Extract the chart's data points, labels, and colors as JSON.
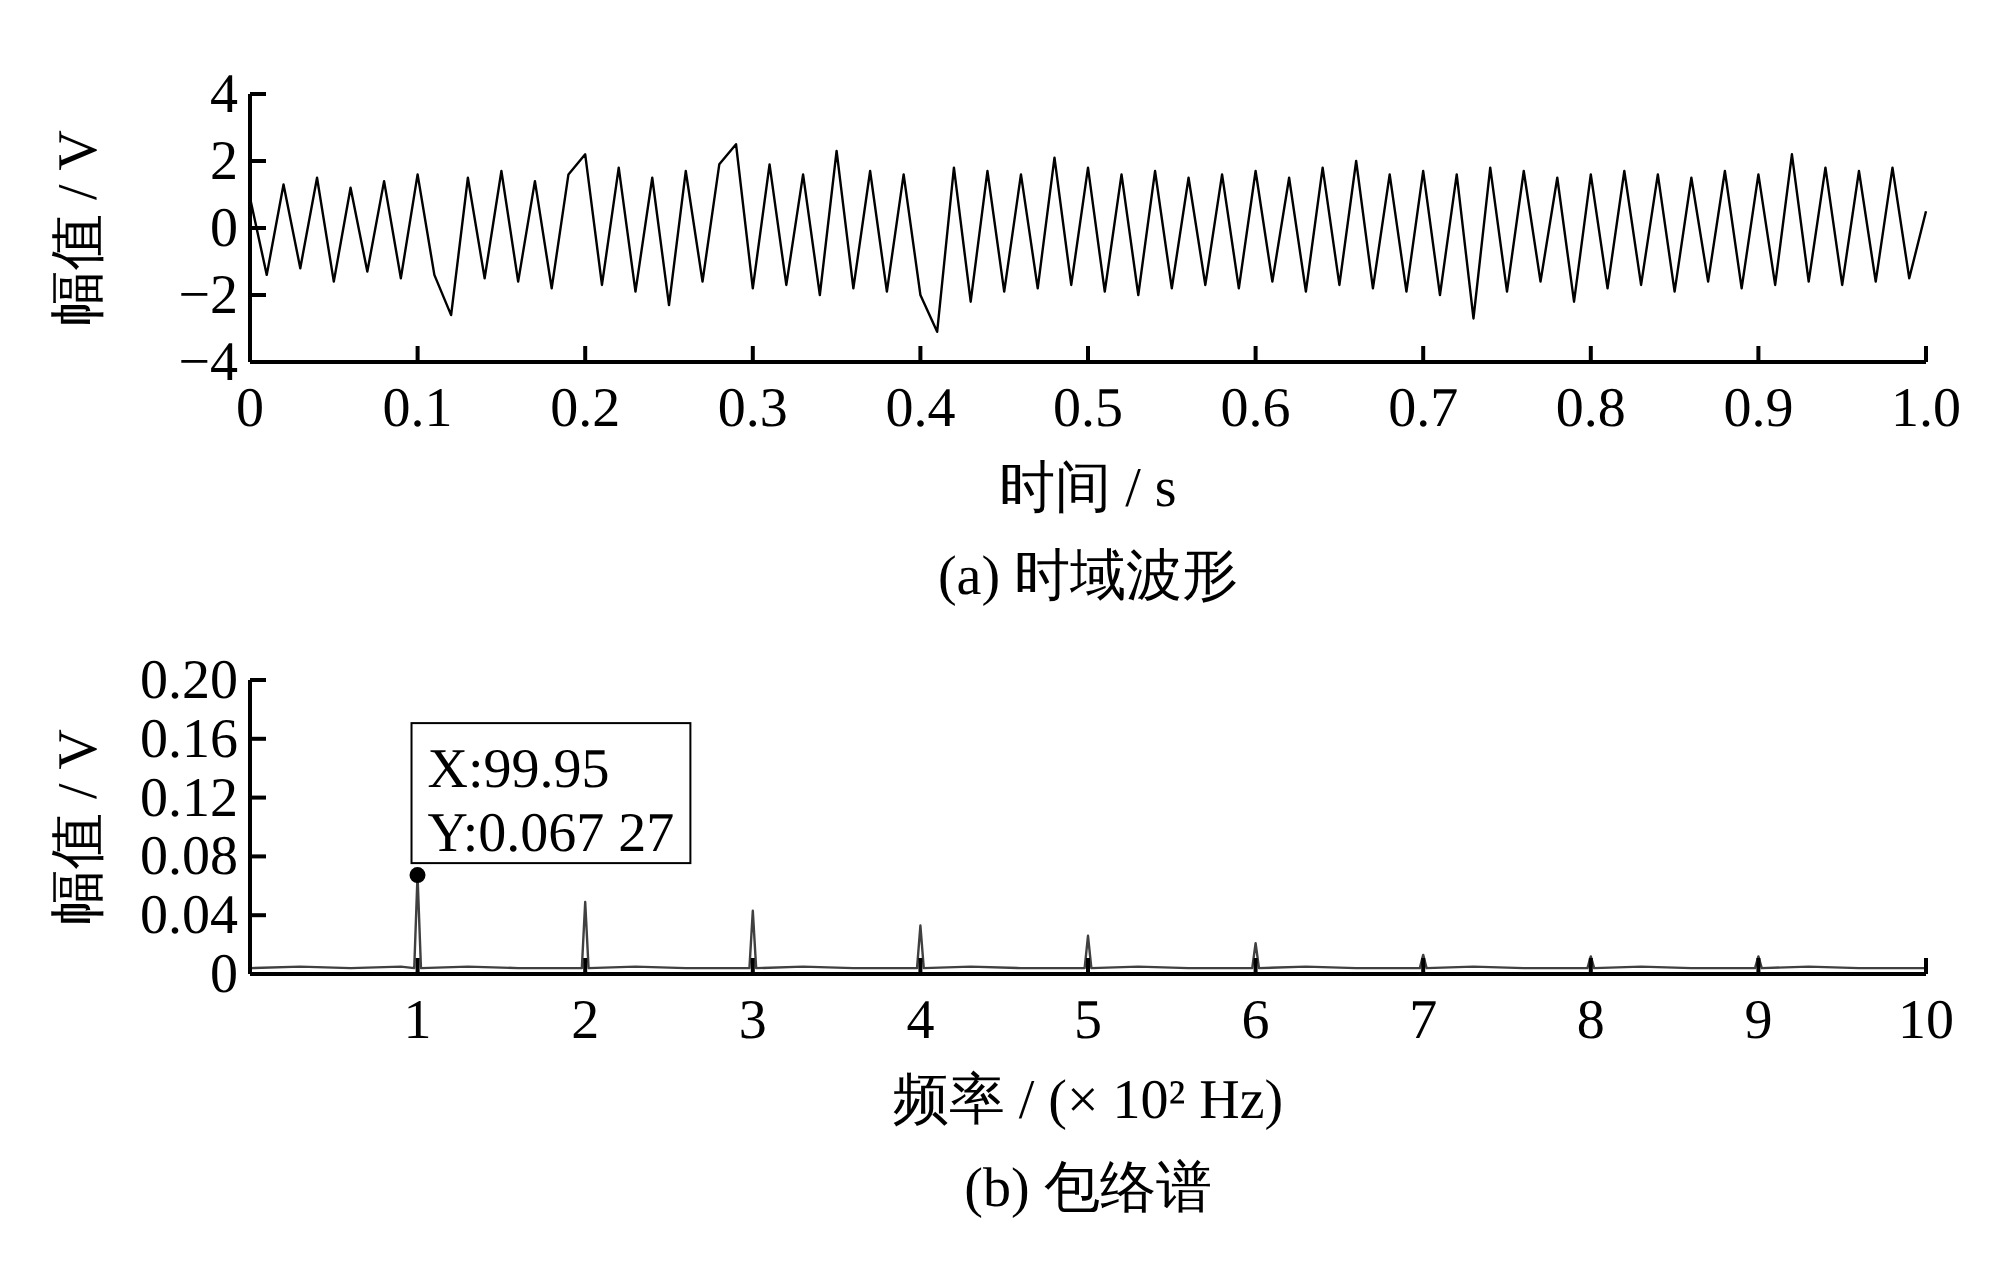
{
  "chart_data": [
    {
      "type": "line",
      "title": "(a) 时域波形",
      "xlabel": "时间 / s",
      "ylabel": "幅值 / V",
      "xlim": [
        0,
        1
      ],
      "ylim": [
        -4,
        4
      ],
      "xticks": [
        0,
        0.1,
        0.2,
        0.3,
        0.4,
        0.5,
        0.6,
        0.7,
        0.8,
        0.9,
        {
          "value": 1,
          "label": "1.0"
        }
      ],
      "yticks": [
        -4,
        -2,
        0,
        2,
        4
      ],
      "series": [
        {
          "color": "#000000",
          "x": [
            0,
            0.01,
            0.02,
            0.03,
            0.04,
            0.05,
            0.06,
            0.07,
            0.08,
            0.09,
            0.1,
            0.11,
            0.12,
            0.13,
            0.14,
            0.15,
            0.16,
            0.17,
            0.18,
            0.19,
            0.2,
            0.21,
            0.22,
            0.23,
            0.24,
            0.25,
            0.26,
            0.27,
            0.28,
            0.29,
            0.3,
            0.31,
            0.32,
            0.33,
            0.34,
            0.35,
            0.36,
            0.37,
            0.38,
            0.39,
            0.4,
            0.41,
            0.42,
            0.43,
            0.44,
            0.45,
            0.46,
            0.47,
            0.48,
            0.49,
            0.5,
            0.51,
            0.52,
            0.53,
            0.54,
            0.55,
            0.56,
            0.57,
            0.58,
            0.59,
            0.6,
            0.61,
            0.62,
            0.63,
            0.64,
            0.65,
            0.66,
            0.67,
            0.68,
            0.69,
            0.7,
            0.71,
            0.72,
            0.73,
            0.74,
            0.75,
            0.76,
            0.77,
            0.78,
            0.79,
            0.8,
            0.81,
            0.82,
            0.83,
            0.84,
            0.85,
            0.86,
            0.87,
            0.88,
            0.89,
            0.9,
            0.91,
            0.92,
            0.93,
            0.94,
            0.95,
            0.96,
            0.97,
            0.98,
            0.99,
            1
          ],
          "values": [
            0.9,
            -1.4,
            1.3,
            -1.2,
            1.5,
            -1.6,
            1.2,
            -1.3,
            1.4,
            -1.5,
            1.6,
            -1.4,
            -2.6,
            1.5,
            -1.5,
            1.7,
            -1.6,
            1.4,
            -1.8,
            1.6,
            2.2,
            -1.7,
            1.8,
            -1.9,
            1.5,
            -2.3,
            1.7,
            -1.6,
            1.9,
            2.5,
            -1.8,
            1.9,
            -1.7,
            1.6,
            -2.0,
            2.3,
            -1.8,
            1.7,
            -1.9,
            1.6,
            -2.0,
            -3.1,
            1.8,
            -2.2,
            1.7,
            -1.9,
            1.6,
            -1.8,
            2.1,
            -1.7,
            1.8,
            -1.9,
            1.6,
            -2.0,
            1.7,
            -1.8,
            1.5,
            -1.7,
            1.6,
            -1.8,
            1.7,
            -1.6,
            1.5,
            -1.9,
            1.8,
            -1.7,
            2.0,
            -1.8,
            1.6,
            -1.9,
            1.7,
            -2.0,
            1.6,
            -2.7,
            1.8,
            -1.9,
            1.7,
            -1.6,
            1.5,
            -2.2,
            1.6,
            -1.8,
            1.7,
            -1.7,
            1.6,
            -1.9,
            1.5,
            -1.6,
            1.7,
            -1.8,
            1.6,
            -1.7,
            2.2,
            -1.6,
            1.8,
            -1.7,
            1.7,
            -1.6,
            1.8,
            -1.5,
            0.5
          ]
        }
      ]
    },
    {
      "type": "line",
      "title": "(b) 包络谱",
      "xlabel": "频率 / (× 10² Hz)",
      "ylabel": "幅值 / V",
      "xlim": [
        0,
        10
      ],
      "ylim": [
        0,
        0.2
      ],
      "xticks": [
        1,
        2,
        3,
        4,
        5,
        6,
        7,
        8,
        9,
        10
      ],
      "yticks": [
        0,
        {
          "value": 0.04,
          "label": "0.04"
        },
        {
          "value": 0.08,
          "label": "0.08"
        },
        {
          "value": 0.12,
          "label": "0.12"
        },
        {
          "value": 0.16,
          "label": "0.16"
        },
        {
          "value": 0.2,
          "label": "0.20"
        }
      ],
      "annotations": [
        {
          "text": "X:99.95\nY:0.067 27",
          "x": 0.9995,
          "y": 0.06727
        }
      ],
      "series": [
        {
          "color": "#404040",
          "x": [
            0,
            0.3,
            0.6,
            0.9,
            0.98,
            0.9995,
            1.02,
            1.3,
            1.6,
            1.98,
            2.0,
            2.02,
            2.3,
            2.6,
            2.98,
            3.0,
            3.02,
            3.3,
            3.6,
            3.98,
            4.0,
            4.02,
            4.3,
            4.6,
            4.98,
            5.0,
            5.02,
            5.3,
            5.6,
            5.98,
            6.0,
            6.02,
            6.3,
            6.6,
            6.98,
            7.0,
            7.02,
            7.3,
            7.6,
            7.98,
            8.0,
            8.02,
            8.3,
            8.6,
            8.98,
            9.0,
            9.02,
            9.3,
            9.6,
            10
          ],
          "values": [
            0.004,
            0.005,
            0.004,
            0.005,
            0.004,
            0.06727,
            0.004,
            0.005,
            0.004,
            0.004,
            0.049,
            0.004,
            0.005,
            0.004,
            0.004,
            0.043,
            0.004,
            0.005,
            0.004,
            0.004,
            0.033,
            0.004,
            0.005,
            0.004,
            0.004,
            0.026,
            0.004,
            0.005,
            0.004,
            0.004,
            0.021,
            0.004,
            0.005,
            0.004,
            0.004,
            0.013,
            0.004,
            0.005,
            0.004,
            0.004,
            0.012,
            0.004,
            0.005,
            0.004,
            0.004,
            0.012,
            0.004,
            0.005,
            0.004,
            0.004
          ]
        },
        {
          "type": "scatter",
          "marker": "circle",
          "color": "#000000",
          "x": [
            0.9995
          ],
          "values": [
            0.06727
          ]
        }
      ]
    }
  ]
}
